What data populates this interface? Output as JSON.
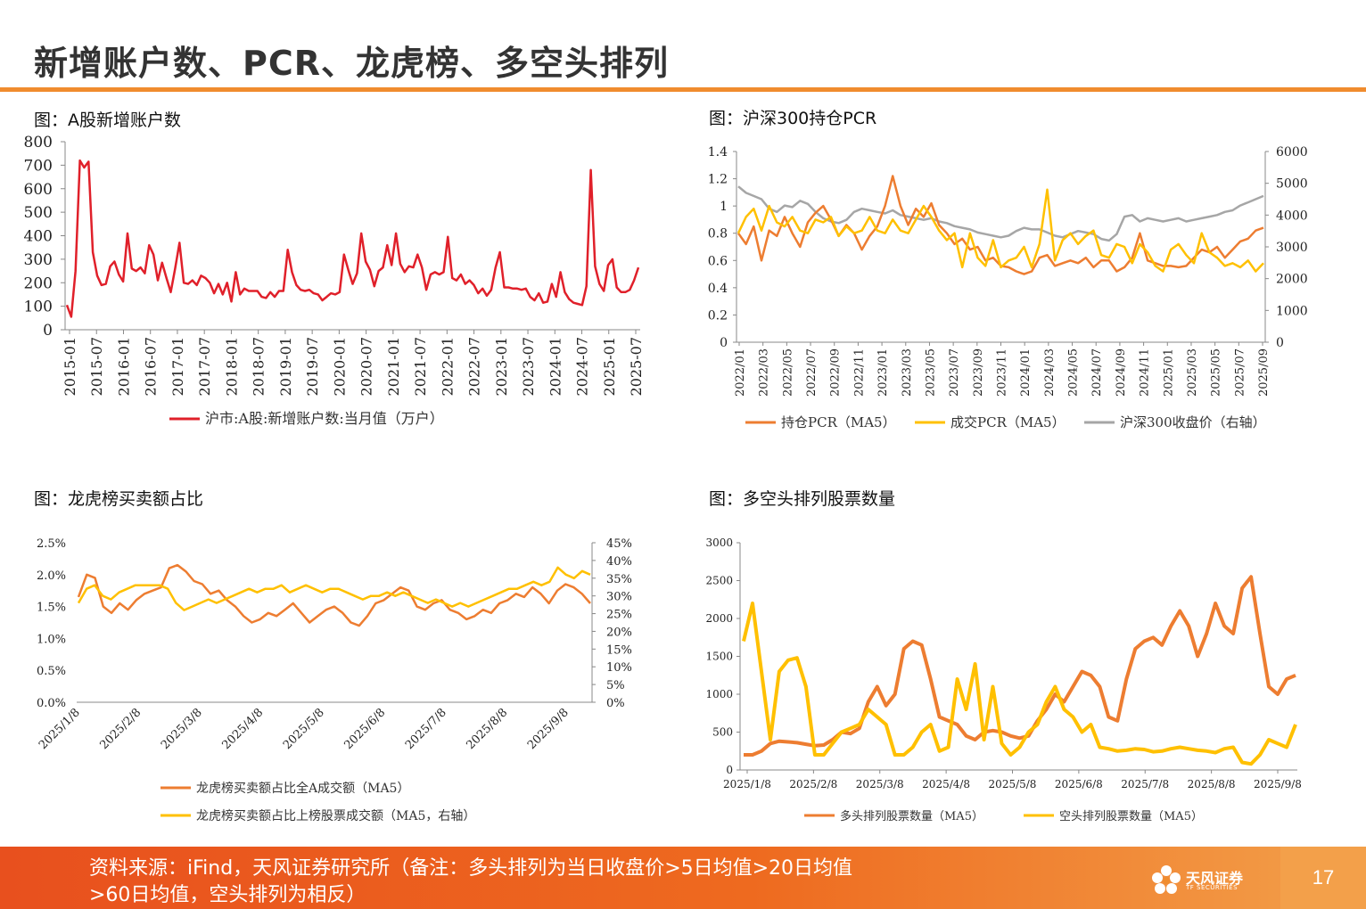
{
  "page": {
    "title": "新增账户数、PCR、龙虎榜、多空头排列",
    "source_note": "资料来源：iFind，天风证券研究所（备注：多头排列为当日收盘价>5日均值>20日均值>60日均值，空头排列为相反）",
    "page_number": "17",
    "brand_name": "天风证券",
    "brand_sub": "TF SECURITIES",
    "accent_color": "#F08C2E"
  },
  "captions": {
    "accounts": "图：A股新增账户数",
    "pcr": "图：沪深300持仓PCR",
    "lhb": "图：龙虎榜买卖额占比",
    "arrangement": "图：多空头排列股票数量"
  },
  "chart_data": [
    {
      "id": "accounts",
      "type": "line",
      "ylim": [
        0,
        800
      ],
      "yticks": [
        "0",
        "100",
        "200",
        "300",
        "400",
        "500",
        "600",
        "700",
        "800"
      ],
      "xticks": [
        "2015-01",
        "2015-07",
        "2016-01",
        "2016-07",
        "2017-01",
        "2017-07",
        "2018-01",
        "2018-07",
        "2019-01",
        "2019-07",
        "2020-01",
        "2020-07",
        "2021-01",
        "2021-07",
        "2022-01",
        "2022-07",
        "2023-01",
        "2023-07",
        "2024-01",
        "2024-07",
        "2025-01",
        "2025-07"
      ],
      "series": [
        {
          "name": "沪市:A股:新增账户数:当月值（万户）",
          "color": "#E0202A",
          "values": [
            105,
            55,
            250,
            720,
            690,
            715,
            330,
            230,
            190,
            195,
            270,
            290,
            235,
            205,
            410,
            260,
            250,
            265,
            240,
            360,
            320,
            210,
            285,
            220,
            160,
            260,
            370,
            200,
            195,
            210,
            190,
            230,
            220,
            200,
            155,
            195,
            150,
            200,
            120,
            245,
            150,
            175,
            165,
            165,
            165,
            140,
            135,
            160,
            140,
            165,
            165,
            340,
            245,
            190,
            170,
            165,
            170,
            155,
            150,
            125,
            140,
            155,
            150,
            160,
            320,
            255,
            195,
            240,
            410,
            290,
            255,
            185,
            250,
            265,
            360,
            275,
            410,
            280,
            245,
            270,
            265,
            320,
            265,
            170,
            235,
            245,
            235,
            245,
            395,
            220,
            210,
            235,
            195,
            210,
            190,
            155,
            175,
            145,
            170,
            265,
            330,
            180,
            180,
            175,
            175,
            170,
            175,
            140,
            125,
            155,
            115,
            120,
            195,
            140,
            245,
            160,
            130,
            115,
            110,
            105,
            185,
            680,
            270,
            195,
            165,
            275,
            300,
            180,
            160,
            160,
            170,
            210,
            265
          ]
        }
      ]
    },
    {
      "id": "pcr",
      "type": "line",
      "ylim_left": [
        0,
        1.4
      ],
      "ylim_right": [
        0,
        6000
      ],
      "yticks_left": [
        "0",
        "0.2",
        "0.4",
        "0.6",
        "0.8",
        "1",
        "1.2",
        "1.4"
      ],
      "yticks_right": [
        "0",
        "1000",
        "2000",
        "3000",
        "4000",
        "5000",
        "6000"
      ],
      "xticks": [
        "2022/01",
        "2022/03",
        "2022/05",
        "2022/07",
        "2022/09",
        "2022/11",
        "2023/01",
        "2023/03",
        "2023/05",
        "2023/07",
        "2023/09",
        "2023/11",
        "2024/01",
        "2024/03",
        "2024/05",
        "2024/07",
        "2024/09",
        "2024/11",
        "2025/01",
        "2025/03",
        "2025/05",
        "2025/07",
        "2025/09"
      ],
      "series": [
        {
          "name": "持仓PCR（MA5）",
          "color": "#ED7D31",
          "axis": "left",
          "values": [
            0.8,
            0.72,
            0.85,
            0.6,
            0.82,
            0.78,
            0.92,
            0.8,
            0.7,
            0.88,
            0.95,
            1.0,
            0.9,
            0.78,
            0.86,
            0.8,
            0.68,
            0.78,
            0.85,
            1.0,
            1.22,
            1.0,
            0.86,
            0.98,
            0.92,
            1.02,
            0.86,
            0.8,
            0.72,
            0.76,
            0.68,
            0.7,
            0.6,
            0.62,
            0.56,
            0.55,
            0.52,
            0.5,
            0.52,
            0.62,
            0.64,
            0.56,
            0.58,
            0.6,
            0.58,
            0.62,
            0.55,
            0.6,
            0.6,
            0.52,
            0.55,
            0.62,
            0.8,
            0.6,
            0.58,
            0.56,
            0.56,
            0.55,
            0.56,
            0.62,
            0.68,
            0.66,
            0.7,
            0.62,
            0.68,
            0.74,
            0.76,
            0.82,
            0.84
          ]
        },
        {
          "name": "成交PCR（MA5）",
          "color": "#FFC000",
          "axis": "left",
          "values": [
            0.8,
            0.92,
            0.98,
            0.82,
            1.0,
            0.88,
            0.85,
            0.92,
            0.82,
            0.8,
            0.9,
            0.88,
            0.92,
            0.78,
            0.85,
            0.8,
            0.82,
            0.92,
            0.82,
            0.8,
            0.9,
            0.82,
            0.8,
            0.9,
            1.0,
            0.92,
            0.82,
            0.75,
            0.8,
            0.55,
            0.8,
            0.62,
            0.56,
            0.75,
            0.55,
            0.6,
            0.62,
            0.7,
            0.55,
            0.72,
            1.12,
            0.6,
            0.75,
            0.8,
            0.72,
            0.78,
            0.82,
            0.64,
            0.62,
            0.72,
            0.7,
            0.58,
            0.72,
            0.66,
            0.56,
            0.52,
            0.68,
            0.72,
            0.64,
            0.58,
            0.8,
            0.66,
            0.62,
            0.56,
            0.58,
            0.55,
            0.6,
            0.52,
            0.58
          ]
        },
        {
          "name": "沪深300收盘价（右轴）",
          "color": "#A6A6A6",
          "axis": "right",
          "values": [
            4900,
            4700,
            4600,
            4500,
            4200,
            4100,
            4300,
            4250,
            4450,
            4350,
            4100,
            3900,
            3800,
            3750,
            3850,
            4100,
            4200,
            4150,
            4100,
            4050,
            4150,
            4000,
            3950,
            3900,
            3850,
            3900,
            3800,
            3750,
            3650,
            3600,
            3550,
            3450,
            3400,
            3350,
            3300,
            3350,
            3500,
            3600,
            3550,
            3550,
            3450,
            3350,
            3300,
            3400,
            3500,
            3450,
            3400,
            3250,
            3200,
            3400,
            3950,
            4000,
            3800,
            3900,
            3850,
            3800,
            3850,
            3900,
            3800,
            3850,
            3900,
            3950,
            4000,
            4100,
            4150,
            4300,
            4400,
            4500,
            4600
          ]
        }
      ],
      "legend": "bottom"
    },
    {
      "id": "lhb",
      "type": "line",
      "ylim_left": [
        0,
        2.5
      ],
      "ylim_right": [
        0,
        45
      ],
      "yticks_left": [
        "0.0%",
        "0.5%",
        "1.0%",
        "1.5%",
        "2.0%",
        "2.5%"
      ],
      "yticks_right": [
        "0%",
        "5%",
        "10%",
        "15%",
        "20%",
        "25%",
        "30%",
        "35%",
        "40%",
        "45%"
      ],
      "xticks": [
        "2025/1/8",
        "2025/2/8",
        "2025/3/8",
        "2025/4/8",
        "2025/5/8",
        "2025/6/8",
        "2025/7/8",
        "2025/8/8",
        "2025/9/8"
      ],
      "series": [
        {
          "name": "龙虎榜买卖额占比全A成交额（MA5）",
          "color": "#ED7D31",
          "axis": "left",
          "values": [
            1.65,
            2.0,
            1.95,
            1.5,
            1.4,
            1.55,
            1.45,
            1.6,
            1.7,
            1.75,
            1.8,
            2.1,
            2.15,
            2.05,
            1.9,
            1.85,
            1.7,
            1.75,
            1.6,
            1.5,
            1.35,
            1.25,
            1.3,
            1.4,
            1.35,
            1.45,
            1.55,
            1.4,
            1.25,
            1.35,
            1.45,
            1.5,
            1.4,
            1.25,
            1.2,
            1.35,
            1.55,
            1.6,
            1.7,
            1.8,
            1.75,
            1.5,
            1.45,
            1.55,
            1.6,
            1.45,
            1.4,
            1.3,
            1.35,
            1.45,
            1.4,
            1.55,
            1.6,
            1.7,
            1.65,
            1.8,
            1.7,
            1.55,
            1.75,
            1.85,
            1.8,
            1.7,
            1.55
          ]
        },
        {
          "name": "龙虎榜买卖额占比上榜股票成交额（MA5，右轴）",
          "color": "#FFC000",
          "axis": "right",
          "values": [
            28,
            32,
            33,
            30,
            29,
            31,
            32,
            33,
            33,
            33,
            33,
            32,
            28,
            26,
            27,
            28,
            29,
            28,
            29,
            30,
            31,
            32,
            31,
            32,
            32,
            33,
            31,
            32,
            33,
            32,
            31,
            32,
            32,
            31,
            30,
            29,
            30,
            30,
            31,
            30,
            31,
            30,
            29,
            28,
            29,
            28,
            27,
            28,
            27,
            28,
            29,
            30,
            31,
            32,
            32,
            33,
            34,
            33,
            34,
            38,
            36,
            35,
            37,
            36
          ]
        }
      ],
      "legend": "bottom"
    },
    {
      "id": "arrangement",
      "type": "line",
      "ylim": [
        0,
        3000
      ],
      "yticks": [
        "0",
        "500",
        "1000",
        "1500",
        "2000",
        "2500",
        "3000"
      ],
      "xticks": [
        "2025/1/8",
        "2025/2/8",
        "2025/3/8",
        "2025/4/8",
        "2025/5/8",
        "2025/6/8",
        "2025/7/8",
        "2025/8/8",
        "2025/9/8"
      ],
      "series": [
        {
          "name": "多头排列股票数量（MA5）",
          "color": "#ED7D31",
          "values": [
            200,
            200,
            250,
            350,
            380,
            370,
            360,
            340,
            320,
            330,
            400,
            500,
            480,
            550,
            900,
            1100,
            850,
            1000,
            1600,
            1700,
            1650,
            1200,
            700,
            650,
            600,
            450,
            400,
            500,
            520,
            500,
            450,
            420,
            450,
            650,
            800,
            1000,
            900,
            1100,
            1300,
            1250,
            1100,
            700,
            650,
            1200,
            1600,
            1700,
            1750,
            1650,
            1900,
            2100,
            1900,
            1500,
            1800,
            2200,
            1900,
            1800,
            2400,
            2550,
            1800,
            1100,
            1000,
            1200,
            1250
          ]
        },
        {
          "name": "空头排列股票数量（MA5）",
          "color": "#FFC000",
          "values": [
            1700,
            2200,
            1300,
            400,
            1300,
            1450,
            1480,
            1100,
            200,
            200,
            350,
            500,
            550,
            600,
            800,
            700,
            600,
            200,
            200,
            300,
            500,
            600,
            250,
            300,
            1200,
            800,
            1400,
            400,
            1100,
            350,
            200,
            300,
            500,
            600,
            900,
            1100,
            800,
            700,
            500,
            600,
            300,
            280,
            250,
            260,
            280,
            270,
            240,
            250,
            280,
            300,
            280,
            260,
            250,
            230,
            280,
            300,
            100,
            80,
            200,
            400,
            350,
            300,
            600
          ]
        }
      ],
      "legend": "bottom"
    }
  ]
}
